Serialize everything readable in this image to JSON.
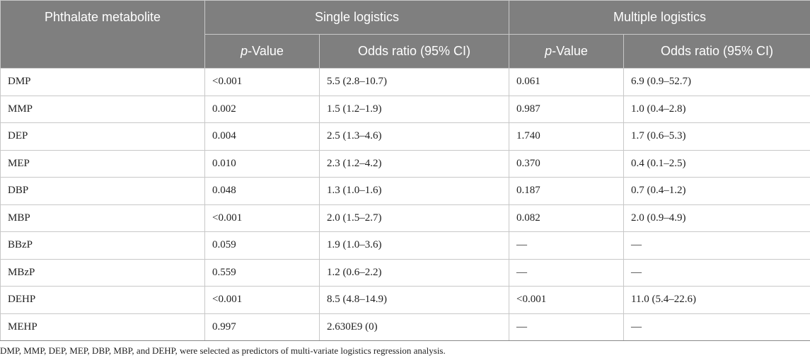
{
  "header": {
    "metabolite_label": "Phthalate metabolite",
    "single_label": "Single logistics",
    "multiple_label": "Multiple logistics",
    "pvalue_prefix": "p",
    "pvalue_suffix": "-Value",
    "odds_label": "Odds ratio (95% CI)"
  },
  "rows": [
    {
      "metabolite": "DMP",
      "single_p": "<0.001",
      "single_or": "5.5 (2.8–10.7)",
      "multi_p": "0.061",
      "multi_or": "6.9 (0.9–52.7)"
    },
    {
      "metabolite": "MMP",
      "single_p": "0.002",
      "single_or": "1.5 (1.2–1.9)",
      "multi_p": "0.987",
      "multi_or": "1.0 (0.4–2.8)"
    },
    {
      "metabolite": "DEP",
      "single_p": "0.004",
      "single_or": "2.5 (1.3–4.6)",
      "multi_p": "1.740",
      "multi_or": "1.7 (0.6–5.3)"
    },
    {
      "metabolite": "MEP",
      "single_p": "0.010",
      "single_or": "2.3 (1.2–4.2)",
      "multi_p": "0.370",
      "multi_or": "0.4 (0.1–2.5)"
    },
    {
      "metabolite": "DBP",
      "single_p": "0.048",
      "single_or": "1.3 (1.0–1.6)",
      "multi_p": "0.187",
      "multi_or": "0.7 (0.4–1.2)"
    },
    {
      "metabolite": "MBP",
      "single_p": "<0.001",
      "single_or": "2.0 (1.5–2.7)",
      "multi_p": "0.082",
      "multi_or": "2.0 (0.9–4.9)"
    },
    {
      "metabolite": "BBzP",
      "single_p": "0.059",
      "single_or": "1.9 (1.0–3.6)",
      "multi_p": "—",
      "multi_or": "—"
    },
    {
      "metabolite": "MBzP",
      "single_p": "0.559",
      "single_or": "1.2 (0.6–2.2)",
      "multi_p": "—",
      "multi_or": "—"
    },
    {
      "metabolite": "DEHP",
      "single_p": "<0.001",
      "single_or": "8.5 (4.8–14.9)",
      "multi_p": "<0.001",
      "multi_or": "11.0 (5.4–22.6)"
    },
    {
      "metabolite": "MEHP",
      "single_p": "0.997",
      "single_or": "2.630E9 (0)",
      "multi_p": "—",
      "multi_or": "—"
    }
  ],
  "footnote": "DMP, MMP, DEP, MEP, DBP, MBP, and DEHP, were selected as predictors of multi-variate logistics regression analysis."
}
